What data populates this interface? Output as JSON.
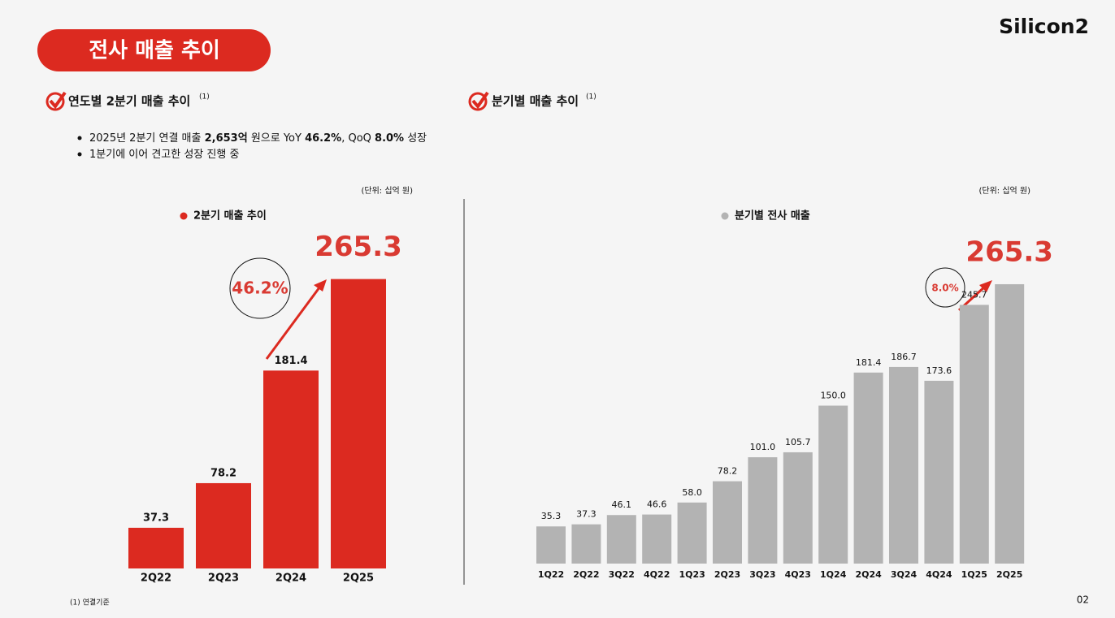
{
  "slide": {
    "title": "전사 매출 추이",
    "logo": "Silicon2",
    "page": "02",
    "footnote": "(1) 연결기준",
    "left_heading": "연도별 2분기 매출 추이",
    "left_heading_note": "(1)",
    "right_heading": "분기별 매출 추이",
    "right_heading_note": "(1)",
    "bullets": [
      [
        {
          "text": "2025년 2분기 연결 매출 "
        },
        {
          "text": "2,653억",
          "bold": true
        },
        {
          "text": " 원으로 YoY "
        },
        {
          "text": "46.2%",
          "bold": true
        },
        {
          "text": ", QoQ "
        },
        {
          "text": "8.0%",
          "bold": true
        },
        {
          "text": " 성장"
        }
      ],
      [
        {
          "text": "1분기에 이어 견고한 성장 진행 중"
        }
      ]
    ]
  },
  "chart_data": [
    {
      "type": "bar",
      "unit": "(단위: 십억 원)",
      "legend": "2분기 매출 추이",
      "categories": [
        "2Q22",
        "2Q23",
        "2Q24",
        "2Q25"
      ],
      "values": [
        37.3,
        78.2,
        181.4,
        265.3
      ],
      "value_labels": [
        "37.3",
        "78.2",
        "181.4",
        "265.3"
      ],
      "color": "#dc2a20",
      "label_color": "#d93a32",
      "annotation": "46.2%",
      "ylim": [
        0,
        300
      ]
    },
    {
      "type": "bar",
      "unit": "(단위: 십억 원)",
      "legend": "분기별 전사 매출",
      "categories": [
        "1Q22",
        "2Q22",
        "3Q22",
        "4Q22",
        "1Q23",
        "2Q23",
        "3Q23",
        "4Q23",
        "1Q24",
        "2Q24",
        "3Q24",
        "4Q24",
        "1Q25",
        "2Q25"
      ],
      "values": [
        35.3,
        37.3,
        46.1,
        46.6,
        58.0,
        78.2,
        101.0,
        105.7,
        150.0,
        181.4,
        186.7,
        173.6,
        245.7,
        265.3
      ],
      "value_labels": [
        "35.3",
        "37.3",
        "46.1",
        "46.6",
        "58.0",
        "78.2",
        "101.0",
        "105.7",
        "150.0",
        "181.4",
        "186.7",
        "173.6",
        "245.7",
        "265.3"
      ],
      "color": "#b3b3b3",
      "label_color": "#d93a32",
      "annotation": "8.0%",
      "ylim": [
        0,
        300
      ]
    }
  ]
}
